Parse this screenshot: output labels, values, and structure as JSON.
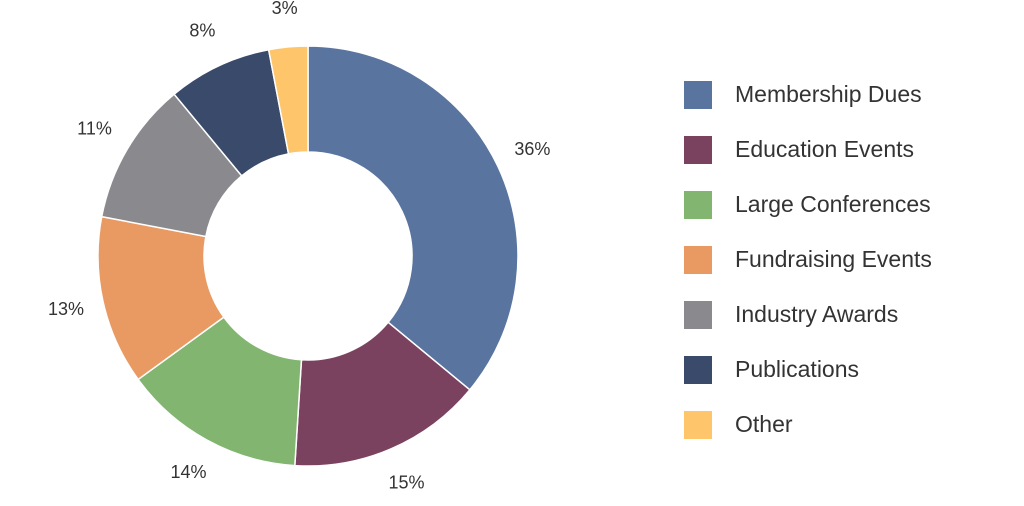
{
  "chart_data": {
    "type": "pie",
    "variant": "donut",
    "title": "",
    "legend_position": "right",
    "series": [
      {
        "name": "Membership Dues",
        "value": 36,
        "label": "36%",
        "color": "#5a74a0"
      },
      {
        "name": "Education Events",
        "value": 15,
        "label": "15%",
        "color": "#7b4260"
      },
      {
        "name": "Large Conferences",
        "value": 14,
        "label": "14%",
        "color": "#82b570"
      },
      {
        "name": "Fundraising Events",
        "value": 13,
        "label": "13%",
        "color": "#e99a62"
      },
      {
        "name": "Industry Awards",
        "value": 11,
        "label": "11%",
        "color": "#8a8a8e"
      },
      {
        "name": "Publications",
        "value": 8,
        "label": "8%",
        "color": "#3a4a6a"
      },
      {
        "name": "Other",
        "value": 3,
        "label": "3%",
        "color": "#fec56b"
      }
    ]
  }
}
